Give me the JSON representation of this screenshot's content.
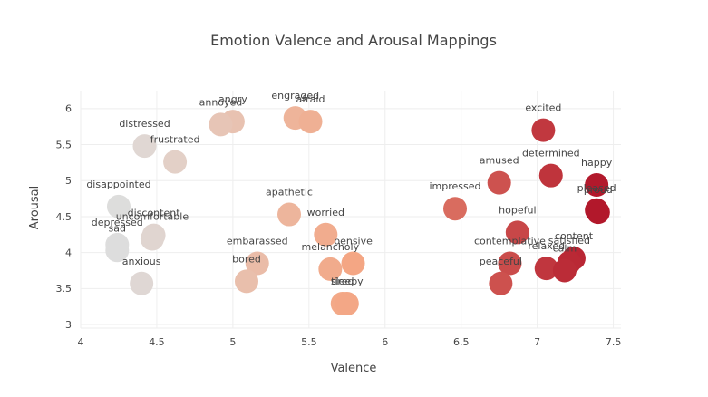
{
  "chart_data": {
    "type": "scatter",
    "title": "Emotion Valence and Arousal Mappings",
    "xlabel": "Valence",
    "ylabel": "Arousal",
    "xlim": [
      4.0,
      7.55
    ],
    "ylim": [
      2.95,
      6.25
    ],
    "xticks": [
      4,
      4.5,
      5,
      5.5,
      6,
      6.5,
      7,
      7.5
    ],
    "yticks": [
      3,
      3.5,
      4,
      4.5,
      5,
      5.5,
      6
    ],
    "grid": true,
    "legend": "none",
    "color_scale": [
      "#dddddd",
      "#f4a582",
      "#b2182b"
    ],
    "points": [
      {
        "label": "engraged",
        "x": 5.41,
        "y": 5.87
      },
      {
        "label": "afraid",
        "x": 5.51,
        "y": 5.82
      },
      {
        "label": "angry",
        "x": 5.0,
        "y": 5.82
      },
      {
        "label": "annoyed",
        "x": 4.92,
        "y": 5.78
      },
      {
        "label": "distressed",
        "x": 4.42,
        "y": 5.48
      },
      {
        "label": "frustrated",
        "x": 4.62,
        "y": 5.26
      },
      {
        "label": "disappointed",
        "x": 4.25,
        "y": 4.64
      },
      {
        "label": "discontent",
        "x": 4.48,
        "y": 4.24
      },
      {
        "label": "uncomfortable",
        "x": 4.47,
        "y": 4.19
      },
      {
        "label": "depressed",
        "x": 4.24,
        "y": 4.11
      },
      {
        "label": "sad",
        "x": 4.24,
        "y": 4.03
      },
      {
        "label": "anxious",
        "x": 4.4,
        "y": 3.57
      },
      {
        "label": "apathetic",
        "x": 5.37,
        "y": 4.53
      },
      {
        "label": "worried",
        "x": 5.61,
        "y": 4.25
      },
      {
        "label": "embarassed",
        "x": 5.16,
        "y": 3.85
      },
      {
        "label": "bored",
        "x": 5.09,
        "y": 3.6
      },
      {
        "label": "melancholy",
        "x": 5.64,
        "y": 3.77
      },
      {
        "label": "pensive",
        "x": 5.79,
        "y": 3.85
      },
      {
        "label": "tired",
        "x": 5.72,
        "y": 3.29
      },
      {
        "label": "sleepy",
        "x": 5.75,
        "y": 3.29
      },
      {
        "label": "excited",
        "x": 7.04,
        "y": 5.7
      },
      {
        "label": "determined",
        "x": 7.09,
        "y": 5.07
      },
      {
        "label": "amused",
        "x": 6.75,
        "y": 4.97
      },
      {
        "label": "happy",
        "x": 7.39,
        "y": 4.94
      },
      {
        "label": "impressed",
        "x": 6.46,
        "y": 4.61
      },
      {
        "label": "pleased",
        "x": 7.39,
        "y": 4.59
      },
      {
        "label": "proud",
        "x": 7.4,
        "y": 4.56
      },
      {
        "label": "hopeful",
        "x": 6.87,
        "y": 4.28
      },
      {
        "label": "content",
        "x": 7.24,
        "y": 3.92
      },
      {
        "label": "satisfied",
        "x": 7.21,
        "y": 3.86
      },
      {
        "label": "contemplative",
        "x": 6.82,
        "y": 3.85
      },
      {
        "label": "relaxed",
        "x": 7.06,
        "y": 3.78
      },
      {
        "label": "calm",
        "x": 7.18,
        "y": 3.75
      },
      {
        "label": "peaceful",
        "x": 6.76,
        "y": 3.57
      }
    ]
  }
}
